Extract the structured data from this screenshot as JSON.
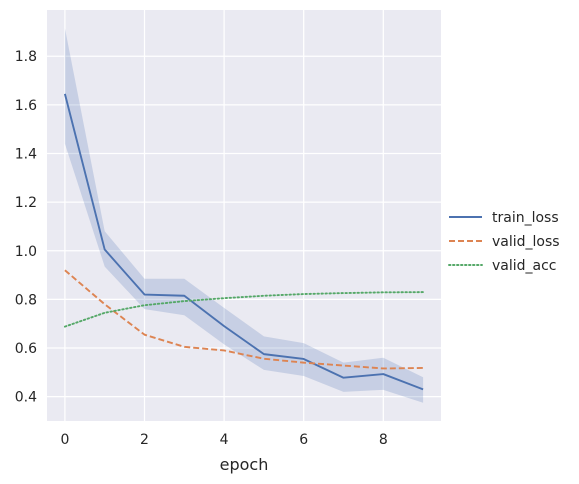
{
  "chart_data": {
    "type": "line",
    "title": "",
    "xlabel": "epoch",
    "ylabel": "",
    "x": [
      0,
      1,
      2,
      3,
      4,
      5,
      6,
      7,
      8,
      9
    ],
    "xlim": [
      -0.45,
      9.45
    ],
    "ylim": [
      0.3,
      1.99
    ],
    "xticks": [
      0,
      2,
      4,
      6,
      8
    ],
    "yticks": [
      0.4,
      0.6,
      0.8,
      1.0,
      1.2,
      1.4,
      1.6,
      1.8
    ],
    "xtick_labels": [
      "0",
      "2",
      "4",
      "6",
      "8"
    ],
    "ytick_labels": [
      "0.4",
      "0.6",
      "0.8",
      "1.0",
      "1.2",
      "1.4",
      "1.6",
      "1.8"
    ],
    "grid": true,
    "legend_position": "right",
    "background": "#eaeaf2",
    "series": [
      {
        "name": "train_loss",
        "color": "#4c72b0",
        "dash": "solid",
        "values": [
          1.645,
          1.005,
          0.82,
          0.815,
          0.69,
          0.575,
          0.555,
          0.478,
          0.493,
          0.43
        ],
        "ci_lower": [
          1.44,
          0.935,
          0.76,
          0.735,
          0.615,
          0.51,
          0.485,
          0.42,
          0.428,
          0.375
        ],
        "ci_upper": [
          1.915,
          1.08,
          0.885,
          0.885,
          0.765,
          0.648,
          0.62,
          0.54,
          0.56,
          0.48
        ]
      },
      {
        "name": "valid_loss",
        "color": "#dd8452",
        "dash": "dashed",
        "values": [
          0.92,
          0.78,
          0.655,
          0.605,
          0.59,
          0.556,
          0.54,
          0.528,
          0.516,
          0.518
        ]
      },
      {
        "name": "valid_acc",
        "color": "#55a868",
        "dash": "dotted",
        "values": [
          0.688,
          0.745,
          0.776,
          0.793,
          0.805,
          0.815,
          0.822,
          0.826,
          0.829,
          0.83
        ]
      }
    ]
  }
}
